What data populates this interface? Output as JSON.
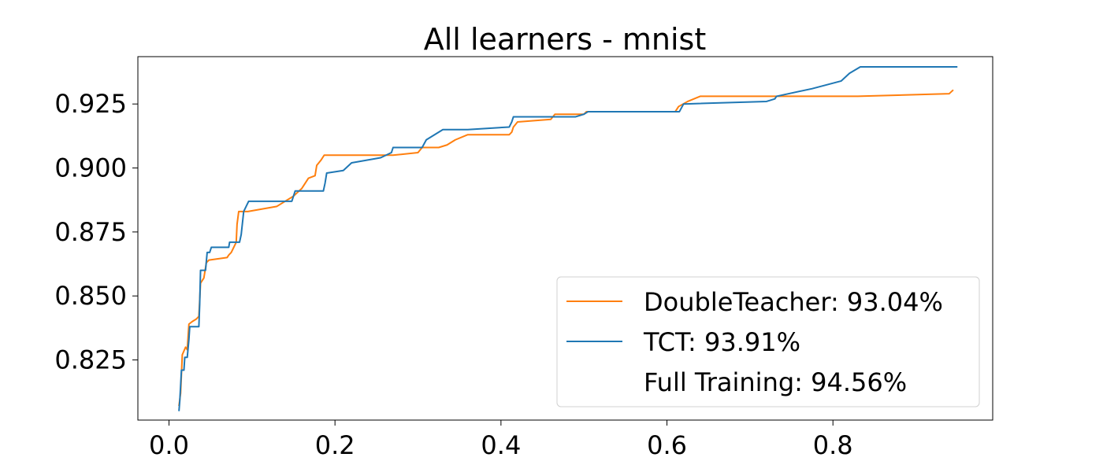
{
  "chart_data": {
    "type": "line",
    "title": "All learners - mnist",
    "xlabel": "",
    "ylabel": "",
    "xlim": [
      -0.0375,
      0.9925
    ],
    "ylim": [
      0.8015,
      0.9435
    ],
    "x_ticks": [
      "0.0",
      "0.2",
      "0.4",
      "0.6",
      "0.8"
    ],
    "x_tick_values": [
      0.0,
      0.2,
      0.4,
      0.6,
      0.8
    ],
    "y_ticks": [
      "0.825",
      "0.850",
      "0.875",
      "0.900",
      "0.925"
    ],
    "y_tick_values": [
      0.825,
      0.85,
      0.875,
      0.9,
      0.925
    ],
    "grid": false,
    "legend_position": "lower-right",
    "legend": [
      {
        "label": "DoubleTeacher: 93.04%",
        "color": "#ff7f0e",
        "has_line": true
      },
      {
        "label": "TCT: 93.91%",
        "color": "#1f77b4",
        "has_line": true
      },
      {
        "label": "Full Training: 94.56%",
        "color": "#ffffff",
        "has_line": false
      }
    ],
    "series": [
      {
        "name": "DoubleTeacher",
        "color": "#ff7f0e",
        "points": [
          [
            0.012,
            0.807
          ],
          [
            0.014,
            0.812
          ],
          [
            0.016,
            0.827
          ],
          [
            0.02,
            0.83
          ],
          [
            0.022,
            0.829
          ],
          [
            0.024,
            0.839
          ],
          [
            0.028,
            0.84
          ],
          [
            0.033,
            0.841
          ],
          [
            0.036,
            0.842
          ],
          [
            0.038,
            0.855
          ],
          [
            0.042,
            0.857
          ],
          [
            0.045,
            0.863
          ],
          [
            0.048,
            0.864
          ],
          [
            0.07,
            0.865
          ],
          [
            0.072,
            0.866
          ],
          [
            0.075,
            0.867
          ],
          [
            0.081,
            0.871
          ],
          [
            0.082,
            0.878
          ],
          [
            0.084,
            0.883
          ],
          [
            0.095,
            0.883
          ],
          [
            0.13,
            0.885
          ],
          [
            0.15,
            0.889
          ],
          [
            0.16,
            0.892
          ],
          [
            0.168,
            0.896
          ],
          [
            0.176,
            0.897
          ],
          [
            0.178,
            0.901
          ],
          [
            0.183,
            0.903
          ],
          [
            0.187,
            0.905
          ],
          [
            0.27,
            0.905
          ],
          [
            0.3,
            0.906
          ],
          [
            0.305,
            0.908
          ],
          [
            0.325,
            0.908
          ],
          [
            0.335,
            0.909
          ],
          [
            0.345,
            0.911
          ],
          [
            0.36,
            0.913
          ],
          [
            0.41,
            0.913
          ],
          [
            0.413,
            0.914
          ],
          [
            0.415,
            0.916
          ],
          [
            0.42,
            0.918
          ],
          [
            0.46,
            0.919
          ],
          [
            0.465,
            0.921
          ],
          [
            0.5,
            0.921
          ],
          [
            0.503,
            0.922
          ],
          [
            0.61,
            0.922
          ],
          [
            0.614,
            0.924
          ],
          [
            0.625,
            0.926
          ],
          [
            0.64,
            0.928
          ],
          [
            0.83,
            0.928
          ],
          [
            0.94,
            0.929
          ],
          [
            0.945,
            0.9305
          ]
        ]
      },
      {
        "name": "TCT",
        "color": "#1f77b4",
        "points": [
          [
            0.012,
            0.805
          ],
          [
            0.013,
            0.809
          ],
          [
            0.015,
            0.821
          ],
          [
            0.018,
            0.821
          ],
          [
            0.019,
            0.826
          ],
          [
            0.022,
            0.826
          ],
          [
            0.024,
            0.833
          ],
          [
            0.025,
            0.838
          ],
          [
            0.036,
            0.838
          ],
          [
            0.037,
            0.847
          ],
          [
            0.038,
            0.86
          ],
          [
            0.044,
            0.86
          ],
          [
            0.046,
            0.867
          ],
          [
            0.049,
            0.867
          ],
          [
            0.051,
            0.869
          ],
          [
            0.072,
            0.869
          ],
          [
            0.073,
            0.871
          ],
          [
            0.085,
            0.871
          ],
          [
            0.087,
            0.874
          ],
          [
            0.09,
            0.883
          ],
          [
            0.093,
            0.885
          ],
          [
            0.096,
            0.887
          ],
          [
            0.148,
            0.887
          ],
          [
            0.15,
            0.889
          ],
          [
            0.152,
            0.891
          ],
          [
            0.186,
            0.891
          ],
          [
            0.188,
            0.894
          ],
          [
            0.19,
            0.898
          ],
          [
            0.21,
            0.899
          ],
          [
            0.22,
            0.902
          ],
          [
            0.255,
            0.904
          ],
          [
            0.268,
            0.906
          ],
          [
            0.27,
            0.908
          ],
          [
            0.305,
            0.908
          ],
          [
            0.31,
            0.911
          ],
          [
            0.33,
            0.915
          ],
          [
            0.36,
            0.915
          ],
          [
            0.41,
            0.916
          ],
          [
            0.413,
            0.918
          ],
          [
            0.415,
            0.92
          ],
          [
            0.49,
            0.92
          ],
          [
            0.5,
            0.921
          ],
          [
            0.505,
            0.922
          ],
          [
            0.615,
            0.922
          ],
          [
            0.62,
            0.925
          ],
          [
            0.72,
            0.926
          ],
          [
            0.73,
            0.927
          ],
          [
            0.732,
            0.928
          ],
          [
            0.775,
            0.931
          ],
          [
            0.81,
            0.934
          ],
          [
            0.82,
            0.937
          ],
          [
            0.833,
            0.9395
          ],
          [
            0.95,
            0.9395
          ]
        ]
      }
    ]
  }
}
